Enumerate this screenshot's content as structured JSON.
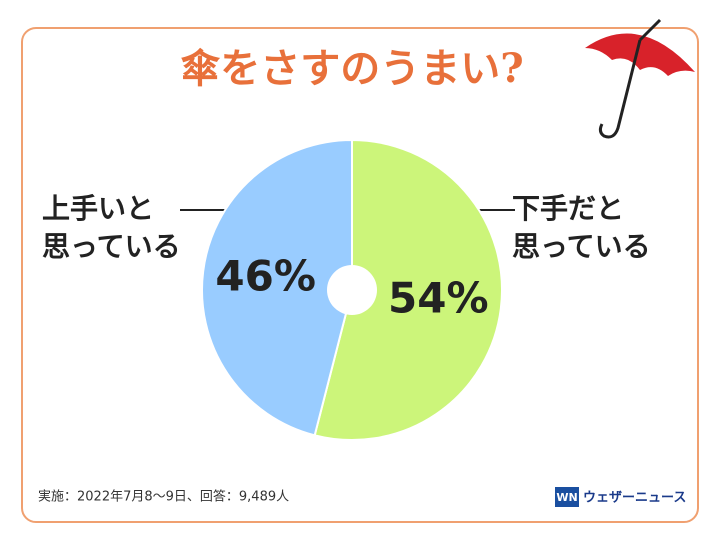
{
  "chart_data": {
    "type": "pie",
    "title": "傘をさすのうまい?",
    "categories": [
      [
        "下手だと",
        "思っている"
      ],
      [
        "上手いと",
        "思っている"
      ]
    ],
    "values": [
      54,
      46
    ],
    "value_labels": [
      "54%",
      "46%"
    ],
    "colors": [
      "#ccf57a",
      "#99ccff"
    ],
    "note": "実施：2022年7月8〜9日、回答：9,489人",
    "logo": {
      "mark": "WN",
      "text": "ウェザーニュース"
    }
  }
}
